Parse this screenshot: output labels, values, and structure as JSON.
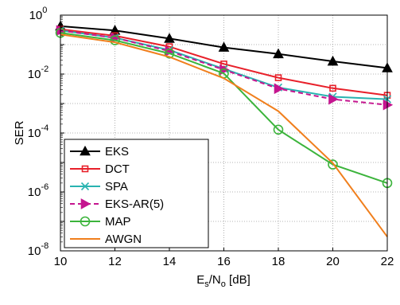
{
  "chart_data": {
    "type": "line",
    "title": "",
    "xlabel": "E_s/N_o [dB]",
    "xlabel_parts": {
      "E": "E",
      "s": "s",
      "slash": "/N",
      "o": "o",
      "unit": " [dB]"
    },
    "ylabel": "SER",
    "x": [
      10,
      12,
      14,
      16,
      18,
      20,
      22
    ],
    "xlim": [
      10,
      22
    ],
    "ylim": [
      1e-08,
      1
    ],
    "yscale": "log",
    "grid": true,
    "legend_position": "bottom-left",
    "x_tick_labels": [
      "10",
      "12",
      "14",
      "16",
      "18",
      "20",
      "22"
    ],
    "y_ticks": [
      {
        "base": "10",
        "exp": "0",
        "value": 1
      },
      {
        "base": "10",
        "exp": "-2",
        "value": 0.01
      },
      {
        "base": "10",
        "exp": "-4",
        "value": 0.0001
      },
      {
        "base": "10",
        "exp": "-6",
        "value": 1e-06
      },
      {
        "base": "10",
        "exp": "-8",
        "value": 1e-08
      }
    ],
    "series": [
      {
        "name": "EKS",
        "color": "#000000",
        "marker": "triangle-up",
        "dash": "solid",
        "values": [
          0.42,
          0.3,
          0.16,
          0.08,
          0.048,
          0.027,
          0.016
        ]
      },
      {
        "name": "DCT",
        "color": "#e8202a",
        "marker": "square",
        "dash": "solid",
        "values": [
          0.33,
          0.2,
          0.085,
          0.022,
          0.0075,
          0.0033,
          0.0019
        ]
      },
      {
        "name": "SPA",
        "color": "#29b3b0",
        "marker": "x",
        "dash": "solid",
        "values": [
          0.3,
          0.17,
          0.065,
          0.015,
          0.0035,
          0.0017,
          0.0014
        ]
      },
      {
        "name": "EKS-AR(5)",
        "color": "#c5158f",
        "marker": "triangle-right",
        "dash": "dashed",
        "values": [
          0.3,
          0.17,
          0.06,
          0.014,
          0.0032,
          0.0014,
          0.0009
        ]
      },
      {
        "name": "MAP",
        "color": "#3cb43c",
        "marker": "circle",
        "dash": "solid",
        "values": [
          0.25,
          0.14,
          0.05,
          0.0105,
          0.00013,
          8.5e-06,
          2e-06
        ]
      },
      {
        "name": "AWGN",
        "color": "#f07f1d",
        "marker": "none",
        "dash": "solid",
        "values": [
          0.22,
          0.12,
          0.038,
          0.0072,
          0.00055,
          9.5e-06,
          3e-08
        ]
      }
    ]
  }
}
